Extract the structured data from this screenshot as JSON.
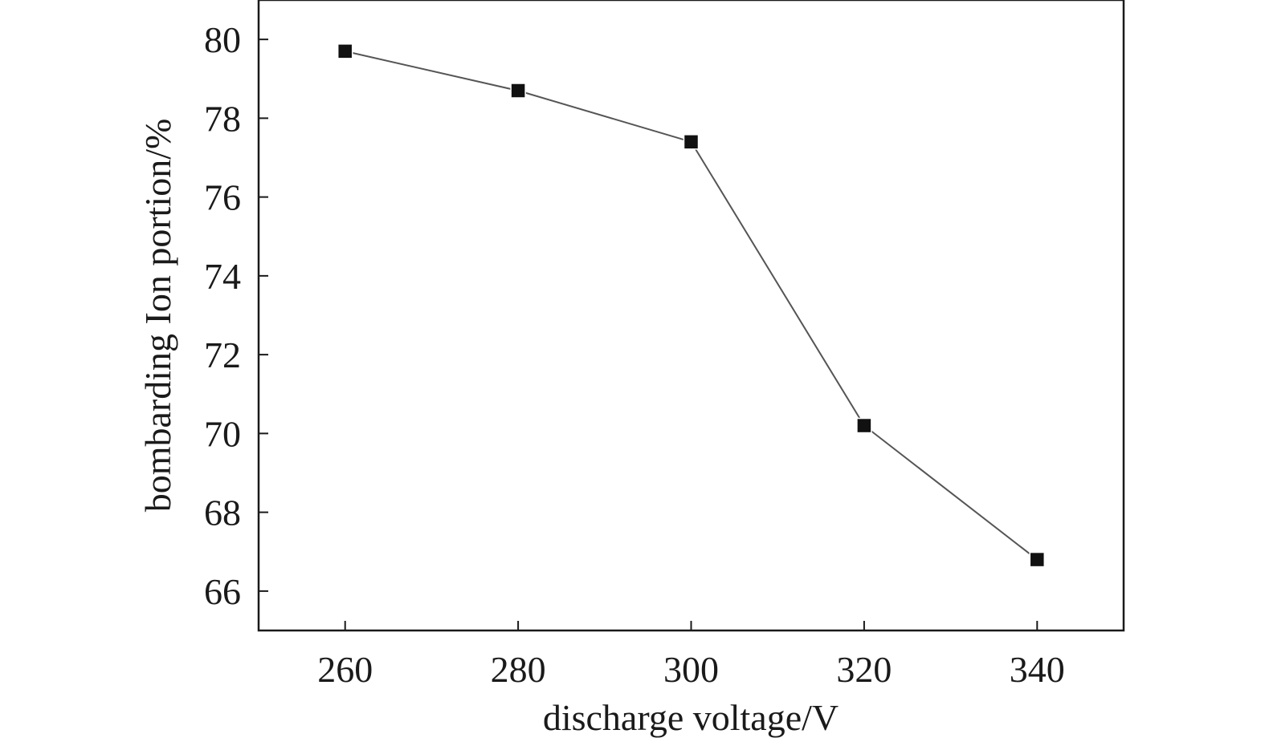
{
  "chart_data": {
    "type": "line",
    "title": "",
    "xlabel": "discharge voltage/V",
    "ylabel": "bombarding Ion portion/%",
    "xlim": [
      250,
      350
    ],
    "ylim": [
      65,
      81
    ],
    "x_ticks": [
      260,
      280,
      300,
      320,
      340
    ],
    "y_ticks": [
      66,
      68,
      70,
      72,
      74,
      76,
      78,
      80
    ],
    "grid": false,
    "legend": "none",
    "series": [
      {
        "x": [
          260,
          280,
          300,
          320,
          340
        ],
        "values": [
          79.7,
          78.7,
          77.4,
          70.2,
          66.8
        ],
        "marker": "square",
        "color": "#111111"
      }
    ]
  }
}
